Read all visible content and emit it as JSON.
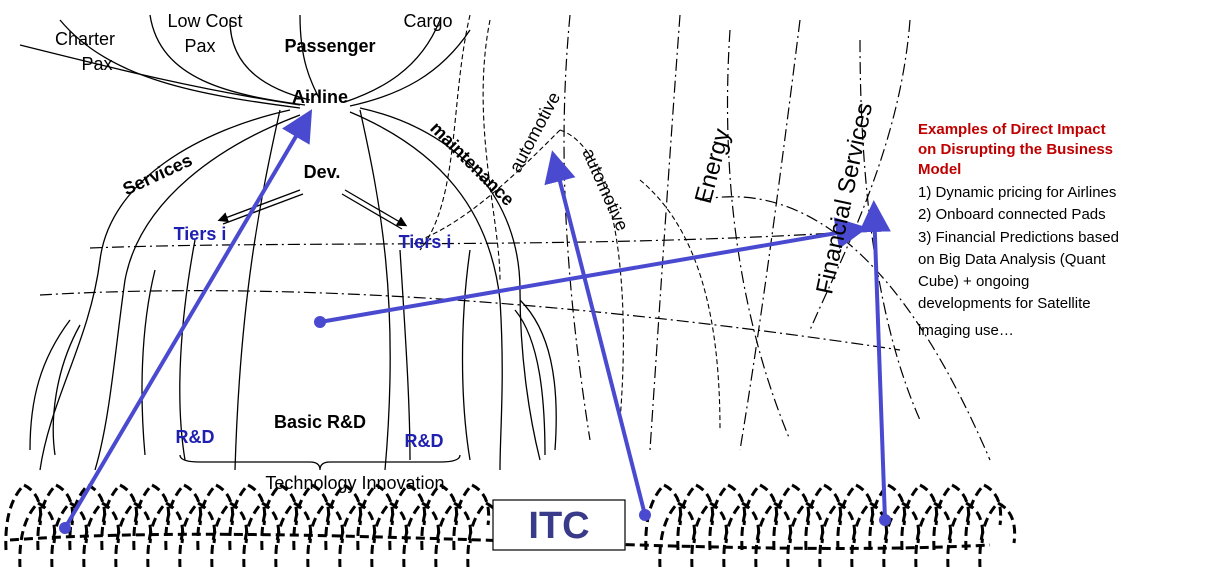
{
  "labels": {
    "charter": [
      "Charter",
      "Pax"
    ],
    "low_cost": [
      "Low Cost",
      "Pax"
    ],
    "passenger": "Passenger",
    "cargo": "Cargo",
    "airline": "Airline",
    "services": "Services",
    "dev": "Dev.",
    "tiers_left": "Tiers i",
    "tiers_right": "Tiers i",
    "maintenance": "maintenance",
    "automotive_1": "automotive",
    "automotive_2": "automotive",
    "energy": "Energy",
    "financial": "Financial Services",
    "basic_rd": "Basic R&D",
    "rd_left": "R&D",
    "rd_right": "R&D",
    "technology": "Technology Innovation",
    "itc": "ITC"
  },
  "examples": {
    "title": [
      "Examples of Direct Impact",
      "on Disrupting the Business",
      "Model"
    ],
    "items": [
      "1) Dynamic pricing for Airlines",
      "2) Onboard connected Pads",
      "3) Financial Predictions based",
      "on Big Data Analysis (Quant",
      "Cube) + ongoing",
      "developments for Satellite",
      "imaging use…"
    ]
  }
}
